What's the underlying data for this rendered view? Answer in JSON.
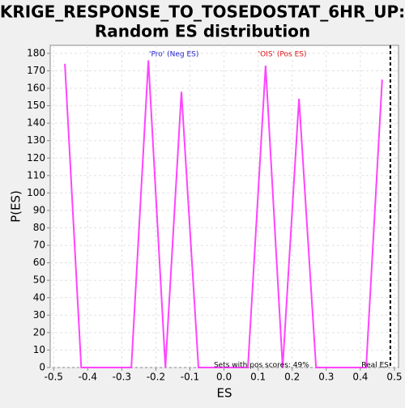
{
  "chart_data": {
    "type": "line",
    "title": [
      "KRIGE_RESPONSE_TO_TOSEDOSTAT_6HR_UP:",
      "Random ES distribution"
    ],
    "x_label": "ES",
    "y_label": "P(ES)",
    "x": [
      -0.467,
      -0.419,
      -0.272,
      -0.222,
      -0.172,
      -0.125,
      -0.075,
      0.07,
      0.122,
      0.172,
      0.22,
      0.27,
      0.417,
      0.464
    ],
    "series": [
      {
        "color": "#ff44ff",
        "values": [
          174,
          0,
          0,
          176,
          0,
          158,
          0,
          0,
          173,
          0,
          154,
          0,
          0,
          165
        ]
      }
    ],
    "xlim": [
      -0.51,
      0.512
    ],
    "ylim": [
      0,
      184.6
    ],
    "xticks": [
      -0.5,
      -0.4,
      -0.3,
      -0.2,
      -0.1,
      {
        "value": 0,
        "label": "0.0"
      },
      0.1,
      0.2,
      0.3,
      0.4,
      0.5
    ],
    "yticks": [
      0,
      10,
      20,
      30,
      40,
      50,
      60,
      70,
      80,
      90,
      100,
      110,
      120,
      130,
      140,
      150,
      160,
      170,
      180
    ],
    "grid": true,
    "real_es": {
      "value": 0.488,
      "label": "Real ES"
    },
    "annotations": [
      {
        "text": "'Pro' (Neg ES)",
        "color": "#2222cc",
        "x": -0.22
      },
      {
        "text": "'OIS' (Pos ES)",
        "color": "#dd1111",
        "x": 0.1
      },
      {
        "text": "Sets with pos scores: 49%",
        "color": "#000000",
        "x": -0.03
      }
    ]
  }
}
